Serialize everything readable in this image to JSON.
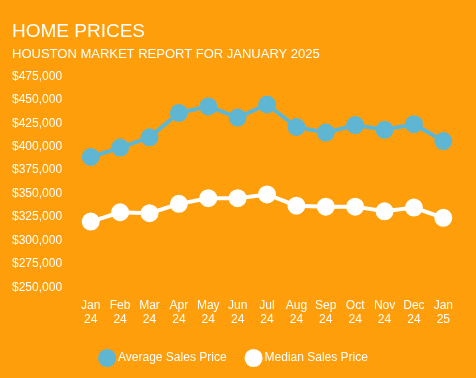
{
  "chart_data": {
    "type": "line",
    "title": "HOME PRICES",
    "subtitle": "HOUSTON MARKET REPORT FOR JANUARY 2025",
    "categories": [
      "Jan 24",
      "Feb 24",
      "Mar 24",
      "Apr 24",
      "May 24",
      "Jun 24",
      "Jul 24",
      "Aug 24",
      "Sep 24",
      "Oct 24",
      "Nov 24",
      "Dec 24",
      "Jan 25"
    ],
    "series": [
      {
        "name": "Average Sales Price",
        "color": "#5fb6d3",
        "marker": "circle",
        "values": [
          389000,
          399000,
          410000,
          436000,
          443000,
          431000,
          445000,
          421000,
          415000,
          423000,
          418000,
          424000,
          406000
        ]
      },
      {
        "name": "Median Sales Price",
        "color": "#ffffff",
        "marker": "circle",
        "values": [
          320000,
          330000,
          329000,
          339000,
          345000,
          345000,
          349000,
          337000,
          336000,
          336000,
          331000,
          335000,
          324000
        ]
      }
    ],
    "ylim": [
      250000,
      475000
    ],
    "yticks": [
      {
        "value": 250000,
        "label": "$250,000"
      },
      {
        "value": 275000,
        "label": "$275,000"
      },
      {
        "value": 300000,
        "label": "$300,000"
      },
      {
        "value": 325000,
        "label": "$325,000"
      },
      {
        "value": 350000,
        "label": "$350,000"
      },
      {
        "value": 375000,
        "label": "$375,000"
      },
      {
        "value": 400000,
        "label": "$400,000"
      },
      {
        "value": 425000,
        "label": "$425,000"
      },
      {
        "value": 450000,
        "label": "$450,000"
      },
      {
        "value": 475000,
        "label": "$475,000"
      }
    ],
    "grid": false,
    "legend": "bottom"
  }
}
